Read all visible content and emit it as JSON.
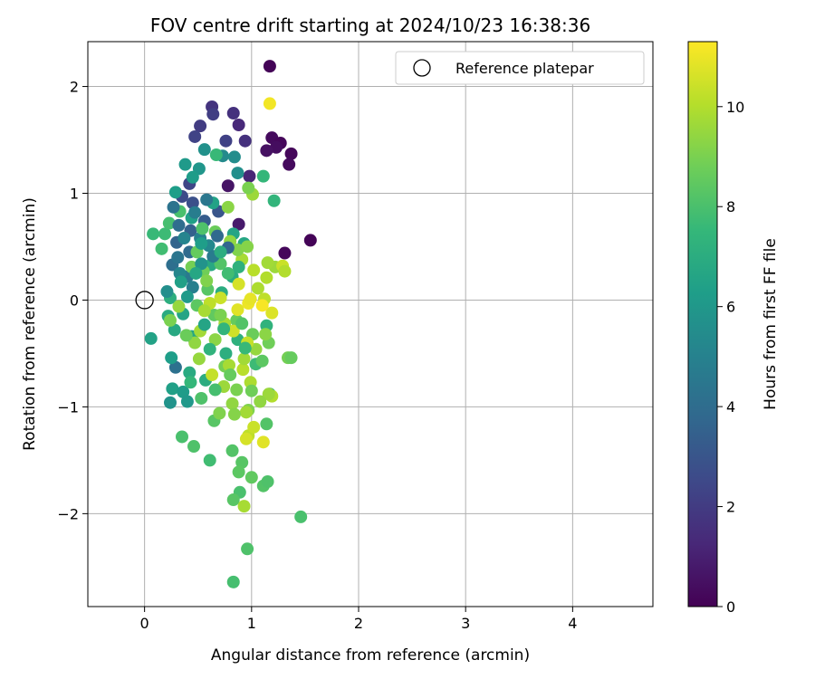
{
  "chart_data": {
    "type": "scatter",
    "title": "FOV centre drift starting at 2024/10/23 16:38:36",
    "xlabel": "Angular distance from reference (arcmin)",
    "ylabel": "Rotation from reference (arcmin)",
    "xlim": [
      -0.53,
      4.75
    ],
    "ylim": [
      -2.87,
      2.42
    ],
    "xticks": [
      0,
      1,
      2,
      3,
      4
    ],
    "xtick_labels": [
      "0",
      "1",
      "2",
      "3",
      "4"
    ],
    "yticks": [
      -2,
      -1,
      0,
      1,
      2
    ],
    "ytick_labels": [
      "−2",
      "−1",
      "0",
      "1",
      "2"
    ],
    "grid": true,
    "legend": {
      "label": "Reference platepar",
      "placement": "top-right",
      "marker": "open-circle"
    },
    "reference_point": {
      "x": 0,
      "y": 0
    },
    "colorbar": {
      "label": "Hours from first FF file",
      "min": 0,
      "max": 11.3,
      "colormap": "viridis",
      "colors": [
        "#440154",
        "#482878",
        "#3e4989",
        "#31688e",
        "#26828e",
        "#1f9e89",
        "#35b779",
        "#6ece58",
        "#b5de2b",
        "#fde725"
      ],
      "ticks": [
        0,
        2,
        4,
        6,
        8,
        10
      ],
      "tick_labels": [
        "0",
        "2",
        "4",
        "6",
        "8",
        "10"
      ]
    },
    "series": [
      {
        "points": [
          [
            1.17,
            2.19,
            0.1
          ],
          [
            1.19,
            1.52,
            0.3
          ],
          [
            1.27,
            1.47,
            0.2
          ],
          [
            1.23,
            1.43,
            0.4
          ],
          [
            1.14,
            1.4,
            0.5
          ],
          [
            1.37,
            1.37,
            0.2
          ],
          [
            1.35,
            1.27,
            0.3
          ],
          [
            0.78,
            1.07,
            0.6
          ],
          [
            1.31,
            0.44,
            0.2
          ],
          [
            1.55,
            0.56,
            0.1
          ],
          [
            0.88,
            0.71,
            0.8
          ],
          [
            0.98,
            1.16,
            1.2
          ],
          [
            0.88,
            1.64,
            1.3
          ],
          [
            0.94,
            1.49,
            1.6
          ],
          [
            0.83,
            1.75,
            1.6
          ],
          [
            0.63,
            1.81,
            1.7
          ],
          [
            0.64,
            1.74,
            2.1
          ],
          [
            0.52,
            1.63,
            2.0
          ],
          [
            0.47,
            1.53,
            2.3
          ],
          [
            0.76,
            1.49,
            2.2
          ],
          [
            0.42,
            1.09,
            2.4
          ],
          [
            0.35,
            0.97,
            2.6
          ],
          [
            0.45,
            0.91,
            2.8
          ],
          [
            0.69,
            0.83,
            3.0
          ],
          [
            0.56,
            0.74,
            3.3
          ],
          [
            0.43,
            0.65,
            3.5
          ],
          [
            0.3,
            0.54,
            3.6
          ],
          [
            0.42,
            0.45,
            3.9
          ],
          [
            0.26,
            0.33,
            4.1
          ],
          [
            0.31,
            0.4,
            4.4
          ],
          [
            0.4,
            0.22,
            4.6
          ],
          [
            0.45,
            0.12,
            4.9
          ],
          [
            0.29,
            -0.63,
            4.2
          ],
          [
            0.52,
            0.58,
            5.0
          ],
          [
            0.6,
            0.51,
            5.3
          ],
          [
            0.73,
            1.35,
            5.4
          ],
          [
            0.84,
            1.34,
            5.5
          ],
          [
            0.87,
            1.19,
            5.6
          ],
          [
            0.51,
            1.23,
            5.9
          ],
          [
            0.56,
            1.41,
            5.7
          ],
          [
            0.38,
            1.27,
            6.1
          ],
          [
            0.45,
            1.15,
            6.2
          ],
          [
            0.29,
            1.01,
            6.3
          ],
          [
            0.44,
            0.77,
            6.4
          ],
          [
            0.64,
            0.91,
            6.5
          ],
          [
            0.83,
            0.62,
            6.6
          ],
          [
            0.93,
            0.53,
            6.7
          ],
          [
            0.62,
            0.33,
            6.8
          ],
          [
            0.82,
            0.22,
            6.9
          ],
          [
            0.72,
            0.07,
            7.0
          ],
          [
            0.24,
            0.02,
            7.1
          ],
          [
            0.22,
            -0.15,
            6.9
          ],
          [
            0.28,
            -0.28,
            6.8
          ],
          [
            0.36,
            -0.13,
            6.6
          ],
          [
            0.44,
            -0.34,
            6.7
          ],
          [
            0.06,
            -0.36,
            6.5
          ],
          [
            0.25,
            -0.54,
            6.3
          ],
          [
            0.26,
            -0.83,
            6.4
          ],
          [
            0.36,
            -0.86,
            6.2
          ],
          [
            0.4,
            -0.95,
            6.0
          ],
          [
            0.24,
            -0.96,
            5.8
          ],
          [
            0.42,
            -0.68,
            6.9
          ],
          [
            0.57,
            -0.75,
            7.0
          ],
          [
            0.76,
            -0.5,
            7.1
          ],
          [
            0.87,
            -0.37,
            7.2
          ],
          [
            1.14,
            -0.24,
            7.3
          ],
          [
            1.17,
            -0.88,
            7.3
          ],
          [
            1.21,
            0.93,
            7.4
          ],
          [
            1.11,
            1.16,
            7.5
          ],
          [
            0.67,
            1.36,
            7.6
          ],
          [
            0.19,
            0.62,
            7.7
          ],
          [
            0.08,
            0.62,
            7.6
          ],
          [
            0.16,
            0.48,
            7.8
          ],
          [
            0.23,
            0.72,
            7.9
          ],
          [
            0.33,
            0.83,
            8.0
          ],
          [
            0.54,
            0.67,
            8.1
          ],
          [
            0.71,
            0.34,
            8.2
          ],
          [
            0.59,
            0.1,
            8.3
          ],
          [
            0.49,
            -0.05,
            8.4
          ],
          [
            0.65,
            -0.14,
            8.5
          ],
          [
            0.86,
            -0.19,
            8.6
          ],
          [
            1.01,
            -0.32,
            8.7
          ],
          [
            1.16,
            -0.4,
            8.8
          ],
          [
            0.75,
            -0.62,
            8.9
          ],
          [
            0.86,
            -0.84,
            9.0
          ],
          [
            0.97,
            -1.03,
            9.1
          ],
          [
            1.14,
            -1.16,
            8.2
          ],
          [
            0.65,
            -1.13,
            8.3
          ],
          [
            0.35,
            -1.28,
            8.0
          ],
          [
            0.46,
            -1.37,
            8.1
          ],
          [
            0.82,
            -1.41,
            8.2
          ],
          [
            0.91,
            -1.52,
            8.3
          ],
          [
            0.88,
            -1.61,
            8.4
          ],
          [
            1.0,
            -1.66,
            8.5
          ],
          [
            1.11,
            -1.74,
            8.2
          ],
          [
            1.15,
            -1.7,
            8.1
          ],
          [
            0.89,
            -1.8,
            8.0
          ],
          [
            0.83,
            -1.87,
            8.3
          ],
          [
            1.46,
            -2.03,
            8.0
          ],
          [
            0.96,
            -2.33,
            8.1
          ],
          [
            0.83,
            -2.64,
            7.9
          ],
          [
            0.61,
            -1.5,
            7.8
          ],
          [
            0.93,
            -1.93,
            9.8
          ],
          [
            1.34,
            -0.54,
            8.9
          ],
          [
            1.37,
            -0.54,
            8.6
          ],
          [
            0.97,
            -1.27,
            10.2
          ],
          [
            0.95,
            -1.3,
            10.6
          ],
          [
            1.11,
            -1.33,
            10.8
          ],
          [
            1.02,
            -1.19,
            10.4
          ],
          [
            0.99,
            -0.77,
            9.9
          ],
          [
            1.19,
            -0.9,
            10.0
          ],
          [
            1.16,
            -0.88,
            9.6
          ],
          [
            1.08,
            -0.95,
            9.4
          ],
          [
            0.92,
            -0.65,
            10.1
          ],
          [
            0.79,
            -0.61,
            9.8
          ],
          [
            0.93,
            -0.55,
            9.7
          ],
          [
            1.04,
            -0.46,
            9.5
          ],
          [
            1.13,
            -0.32,
            9.3
          ],
          [
            0.96,
            -0.4,
            10.3
          ],
          [
            0.83,
            -0.29,
            10.5
          ],
          [
            0.87,
            -0.09,
            10.8
          ],
          [
            0.97,
            -0.03,
            11.0
          ],
          [
            1.19,
            -0.12,
            10.7
          ],
          [
            1.12,
            0.01,
            10.2
          ],
          [
            1.06,
            0.11,
            9.9
          ],
          [
            1.14,
            0.21,
            10.0
          ],
          [
            1.22,
            0.31,
            9.6
          ],
          [
            1.02,
            0.28,
            10.1
          ],
          [
            0.91,
            0.38,
            9.8
          ],
          [
            1.29,
            0.32,
            10.4
          ],
          [
            1.31,
            0.27,
            10.0
          ],
          [
            1.15,
            0.35,
            9.7
          ],
          [
            0.99,
            0.01,
            10.9
          ],
          [
            0.88,
            0.15,
            10.6
          ],
          [
            0.71,
            0.02,
            10.4
          ],
          [
            0.61,
            -0.03,
            10.2
          ],
          [
            0.56,
            -0.1,
            9.8
          ],
          [
            0.52,
            -0.29,
            9.7
          ],
          [
            0.47,
            -0.4,
            9.4
          ],
          [
            0.51,
            -0.55,
            9.5
          ],
          [
            0.63,
            -0.7,
            10.3
          ],
          [
            0.74,
            -0.81,
            9.6
          ],
          [
            0.82,
            -0.97,
            9.4
          ],
          [
            0.95,
            -1.05,
            9.7
          ],
          [
            0.84,
            -1.07,
            9.2
          ],
          [
            0.7,
            -1.06,
            9.1
          ],
          [
            0.75,
            -0.22,
            9.8
          ],
          [
            0.66,
            -0.37,
            9.3
          ],
          [
            0.71,
            -0.14,
            9.0
          ],
          [
            1.01,
            0.99,
            9.6
          ],
          [
            0.97,
            1.05,
            9.0
          ],
          [
            0.78,
            0.87,
            9.3
          ],
          [
            0.8,
            0.55,
            9.4
          ],
          [
            0.87,
            0.47,
            9.1
          ],
          [
            0.96,
            0.5,
            9.2
          ],
          [
            1.17,
            1.84,
            11.1
          ],
          [
            1.1,
            -0.05,
            11.2
          ],
          [
            0.32,
            -0.06,
            9.5
          ],
          [
            0.24,
            -0.19,
            9.0
          ],
          [
            0.39,
            -0.33,
            8.7
          ],
          [
            0.55,
            0.27,
            8.8
          ],
          [
            0.49,
            0.45,
            8.6
          ],
          [
            0.66,
            0.64,
            8.7
          ],
          [
            0.58,
            0.18,
            9.1
          ],
          [
            0.44,
            0.31,
            8.9
          ],
          [
            0.33,
            0.25,
            5.2
          ],
          [
            0.21,
            0.08,
            5.6
          ],
          [
            0.37,
            0.58,
            5.1
          ],
          [
            0.47,
            0.82,
            4.8
          ],
          [
            0.58,
            0.94,
            4.5
          ],
          [
            0.27,
            0.87,
            4.3
          ],
          [
            0.32,
            0.7,
            4.0
          ],
          [
            0.68,
            0.6,
            3.8
          ],
          [
            0.78,
            0.49,
            3.7
          ],
          [
            0.64,
            0.41,
            4.7
          ],
          [
            0.53,
            0.34,
            5.8
          ],
          [
            0.4,
            0.03,
            6.1
          ],
          [
            0.34,
            0.17,
            6.4
          ],
          [
            0.56,
            -0.23,
            6.6
          ],
          [
            0.74,
            -0.27,
            7.4
          ],
          [
            0.94,
            -0.45,
            7.6
          ],
          [
            1.04,
            -0.6,
            7.7
          ],
          [
            0.66,
            -0.84,
            7.9
          ],
          [
            0.53,
            -0.92,
            8.1
          ],
          [
            0.43,
            -0.77,
            7.5
          ],
          [
            0.61,
            -0.46,
            7.3
          ],
          [
            0.8,
            -0.7,
            8.6
          ],
          [
            1.0,
            -0.85,
            8.8
          ],
          [
            1.1,
            -0.57,
            8.4
          ],
          [
            0.91,
            -0.22,
            8.2
          ],
          [
            0.78,
            0.25,
            7.8
          ],
          [
            0.88,
            0.31,
            7.2
          ],
          [
            0.71,
            0.45,
            7.0
          ],
          [
            0.53,
            0.53,
            6.3
          ],
          [
            0.48,
            0.25,
            6.7
          ]
        ]
      }
    ]
  }
}
